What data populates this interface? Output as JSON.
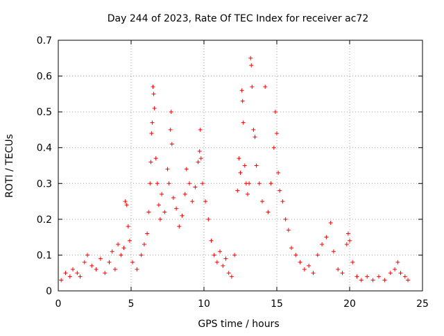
{
  "chart_data": {
    "type": "scatter",
    "title": "Day 244 of 2023, Rate Of TEC Index for receiver ac72",
    "xlabel": "GPS time / hours",
    "ylabel": "ROTI / TECUs",
    "xlim": [
      0,
      25
    ],
    "ylim": [
      0,
      0.7
    ],
    "xticks": [
      "0",
      "5",
      "10",
      "15",
      "20",
      "25"
    ],
    "yticks": [
      "0",
      "0.1",
      "0.2",
      "0.3",
      "0.4",
      "0.5",
      "0.6",
      "0.7"
    ],
    "grid": true,
    "marker": "+",
    "color": "#ff0000",
    "series": [
      {
        "values": [
          [
            0.2,
            0.03
          ],
          [
            0.5,
            0.05
          ],
          [
            0.8,
            0.04
          ],
          [
            1.0,
            0.06
          ],
          [
            1.3,
            0.05
          ],
          [
            1.5,
            0.04
          ],
          [
            1.8,
            0.08
          ],
          [
            2.0,
            0.1
          ],
          [
            2.3,
            0.07
          ],
          [
            2.6,
            0.06
          ],
          [
            2.9,
            0.09
          ],
          [
            3.2,
            0.05
          ],
          [
            3.5,
            0.08
          ],
          [
            3.7,
            0.11
          ],
          [
            3.9,
            0.06
          ],
          [
            4.1,
            0.13
          ],
          [
            4.3,
            0.1
          ],
          [
            4.5,
            0.12
          ],
          [
            4.6,
            0.25
          ],
          [
            4.7,
            0.24
          ],
          [
            4.8,
            0.18
          ],
          [
            4.9,
            0.14
          ],
          [
            5.1,
            0.08
          ],
          [
            5.4,
            0.06
          ],
          [
            5.7,
            0.1
          ],
          [
            5.9,
            0.13
          ],
          [
            6.1,
            0.16
          ],
          [
            6.2,
            0.22
          ],
          [
            6.3,
            0.3
          ],
          [
            6.35,
            0.36
          ],
          [
            6.4,
            0.44
          ],
          [
            6.45,
            0.47
          ],
          [
            6.5,
            0.57
          ],
          [
            6.55,
            0.55
          ],
          [
            6.6,
            0.51
          ],
          [
            6.7,
            0.37
          ],
          [
            6.8,
            0.3
          ],
          [
            6.9,
            0.24
          ],
          [
            7.0,
            0.2
          ],
          [
            7.1,
            0.27
          ],
          [
            7.3,
            0.22
          ],
          [
            7.5,
            0.34
          ],
          [
            7.6,
            0.3
          ],
          [
            7.7,
            0.45
          ],
          [
            7.75,
            0.5
          ],
          [
            7.8,
            0.41
          ],
          [
            7.9,
            0.26
          ],
          [
            8.1,
            0.23
          ],
          [
            8.3,
            0.18
          ],
          [
            8.5,
            0.21
          ],
          [
            8.7,
            0.27
          ],
          [
            8.8,
            0.34
          ],
          [
            9.0,
            0.3
          ],
          [
            9.2,
            0.25
          ],
          [
            9.4,
            0.29
          ],
          [
            9.6,
            0.36
          ],
          [
            9.7,
            0.39
          ],
          [
            9.75,
            0.45
          ],
          [
            9.8,
            0.37
          ],
          [
            9.9,
            0.3
          ],
          [
            10.1,
            0.25
          ],
          [
            10.3,
            0.2
          ],
          [
            10.5,
            0.14
          ],
          [
            10.7,
            0.1
          ],
          [
            10.9,
            0.08
          ],
          [
            11.1,
            0.11
          ],
          [
            11.3,
            0.07
          ],
          [
            11.5,
            0.09
          ],
          [
            11.7,
            0.05
          ],
          [
            11.9,
            0.04
          ],
          [
            12.1,
            0.1
          ],
          [
            12.3,
            0.28
          ],
          [
            12.4,
            0.37
          ],
          [
            12.5,
            0.33
          ],
          [
            12.6,
            0.56
          ],
          [
            12.65,
            0.53
          ],
          [
            12.7,
            0.47
          ],
          [
            12.8,
            0.35
          ],
          [
            12.9,
            0.3
          ],
          [
            13.0,
            0.27
          ],
          [
            13.1,
            0.3
          ],
          [
            13.2,
            0.65
          ],
          [
            13.25,
            0.63
          ],
          [
            13.3,
            0.57
          ],
          [
            13.4,
            0.45
          ],
          [
            13.5,
            0.43
          ],
          [
            13.6,
            0.35
          ],
          [
            13.8,
            0.3
          ],
          [
            14.0,
            0.25
          ],
          [
            14.2,
            0.57
          ],
          [
            14.4,
            0.22
          ],
          [
            14.6,
            0.3
          ],
          [
            14.8,
            0.4
          ],
          [
            14.9,
            0.5
          ],
          [
            15.0,
            0.44
          ],
          [
            15.1,
            0.33
          ],
          [
            15.2,
            0.28
          ],
          [
            15.4,
            0.25
          ],
          [
            15.6,
            0.2
          ],
          [
            15.8,
            0.17
          ],
          [
            16.0,
            0.12
          ],
          [
            16.3,
            0.1
          ],
          [
            16.6,
            0.08
          ],
          [
            16.9,
            0.06
          ],
          [
            17.2,
            0.07
          ],
          [
            17.5,
            0.05
          ],
          [
            17.8,
            0.1
          ],
          [
            18.1,
            0.13
          ],
          [
            18.4,
            0.15
          ],
          [
            18.7,
            0.19
          ],
          [
            18.9,
            0.11
          ],
          [
            19.2,
            0.06
          ],
          [
            19.5,
            0.05
          ],
          [
            19.8,
            0.13
          ],
          [
            19.9,
            0.16
          ],
          [
            20.0,
            0.14
          ],
          [
            20.2,
            0.08
          ],
          [
            20.5,
            0.04
          ],
          [
            20.8,
            0.03
          ],
          [
            21.2,
            0.04
          ],
          [
            21.6,
            0.03
          ],
          [
            22.0,
            0.04
          ],
          [
            22.4,
            0.03
          ],
          [
            22.8,
            0.05
          ],
          [
            23.1,
            0.06
          ],
          [
            23.3,
            0.08
          ],
          [
            23.5,
            0.05
          ],
          [
            23.8,
            0.04
          ],
          [
            24.0,
            0.03
          ]
        ]
      }
    ]
  }
}
